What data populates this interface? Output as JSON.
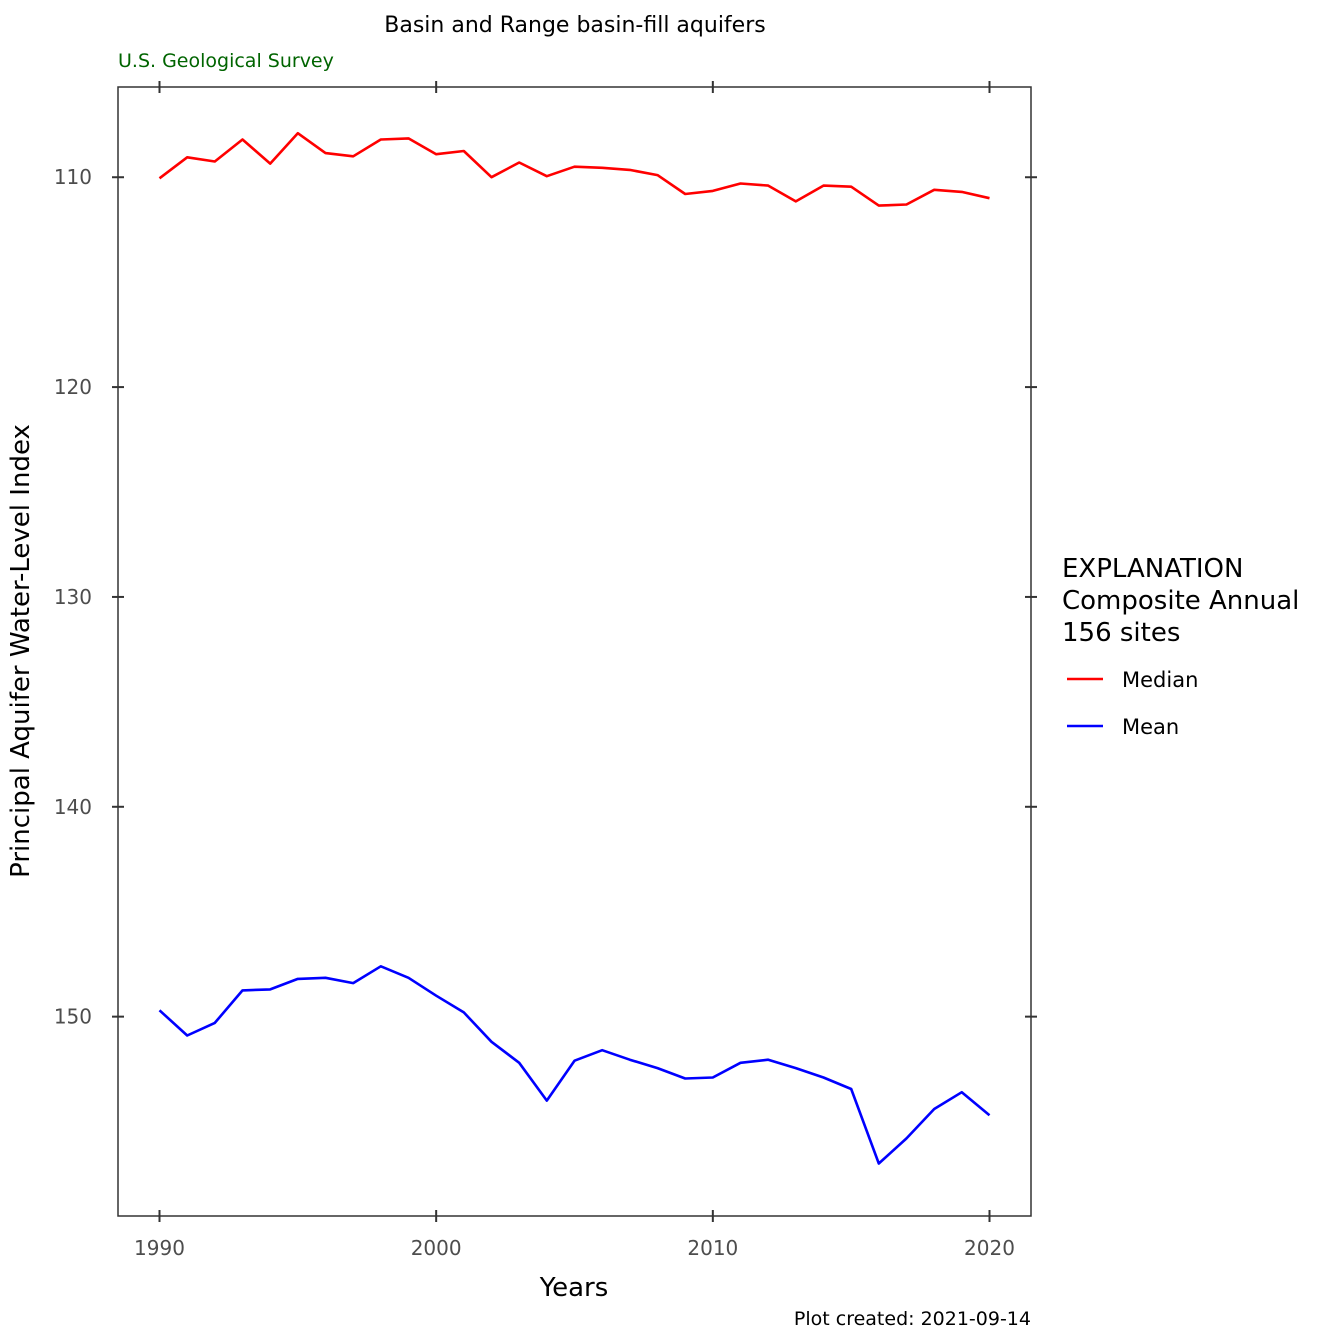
{
  "chart_data": {
    "type": "line",
    "title": "Basin and Range basin-fill aquifers",
    "subtitle": "U.S. Geological Survey",
    "xlabel": "Years",
    "ylabel": "Principal Aquifer Water-Level Index",
    "caption": "Plot created: 2021-09-14",
    "xlim": [
      1988.5,
      2021.5
    ],
    "ylim": [
      105.7,
      159.5
    ],
    "y_reversed": true,
    "x_ticks": [
      1990,
      2000,
      2010,
      2020
    ],
    "y_ticks": [
      110,
      120,
      130,
      140,
      150
    ],
    "x": [
      1990,
      1991,
      1992,
      1993,
      1994,
      1995,
      1996,
      1997,
      1998,
      1999,
      2000,
      2001,
      2002,
      2003,
      2004,
      2005,
      2006,
      2007,
      2008,
      2009,
      2010,
      2011,
      2012,
      2013,
      2014,
      2015,
      2016,
      2017,
      2018,
      2019,
      2020
    ],
    "series": [
      {
        "name": "Median",
        "color": "#ff0000",
        "values": [
          110.05,
          109.05,
          109.25,
          108.2,
          109.35,
          107.9,
          108.85,
          109.0,
          108.2,
          108.15,
          108.9,
          108.75,
          110.0,
          109.3,
          109.95,
          109.5,
          109.55,
          109.65,
          109.9,
          110.8,
          110.65,
          110.3,
          110.4,
          111.15,
          110.4,
          110.45,
          111.35,
          111.3,
          110.6,
          110.7,
          111.0
        ]
      },
      {
        "name": "Mean",
        "color": "#0000ff",
        "values": [
          149.7,
          150.9,
          150.3,
          148.75,
          148.7,
          148.2,
          148.15,
          148.4,
          147.6,
          148.15,
          149.0,
          149.8,
          151.2,
          152.2,
          154.0,
          152.1,
          151.6,
          152.05,
          152.45,
          152.95,
          152.9,
          152.2,
          152.05,
          152.45,
          152.9,
          153.45,
          157.0,
          155.8,
          154.4,
          153.6,
          154.7
        ]
      }
    ],
    "grid": false,
    "legend": {
      "placement": "right",
      "title_lines": [
        "EXPLANATION",
        "Composite Annual",
        "156 sites"
      ]
    }
  },
  "colors": {
    "subtitle": "#006400",
    "tick_label": "#4d4d4d",
    "frame": "#333333"
  }
}
